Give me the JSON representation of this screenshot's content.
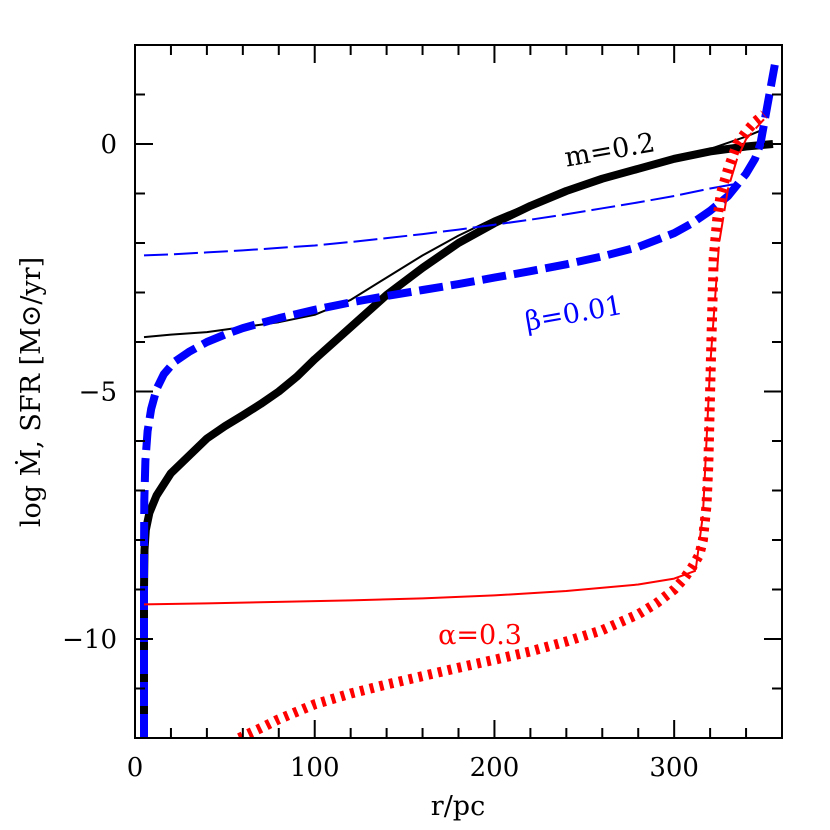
{
  "chart_data": {
    "type": "line",
    "xlabel": "r/pc",
    "ylabel": "log Ṁ, SFR [M⊙/yr]",
    "xlim": [
      0,
      360
    ],
    "ylim": [
      -12,
      2
    ],
    "xticks": [
      0,
      100,
      200,
      300
    ],
    "xtick_labels": [
      "0",
      "100",
      "200",
      "300"
    ],
    "yticks": [
      -10,
      -5,
      0
    ],
    "ytick_labels": [
      "−10",
      "−5",
      "0"
    ],
    "grid": false,
    "legend": "none",
    "colors": {
      "black": "#000000",
      "blue": "#0000ff",
      "red": "#ff0000"
    },
    "annotations": [
      {
        "text": "m=0.2",
        "x": 265,
        "y": -0.3,
        "color": "#000000",
        "rotate": -10
      },
      {
        "text": "β=0.01",
        "x": 245,
        "y": -3.6,
        "color": "#0000ff",
        "rotate": -10
      },
      {
        "text": "α=0.3",
        "x": 192,
        "y": -10.1,
        "color": "#ff0000",
        "rotate": 0
      }
    ],
    "series": [
      {
        "color": "#000000",
        "style": "solid",
        "weight": "thin",
        "x": [
          5,
          20,
          40,
          50,
          60,
          80,
          100,
          120,
          140,
          160,
          180,
          200,
          220,
          240,
          260,
          280,
          300,
          320,
          340,
          350
        ],
        "y": [
          -3.9,
          -3.85,
          -3.8,
          -3.75,
          -3.7,
          -3.6,
          -3.45,
          -3.15,
          -2.7,
          -2.25,
          -1.85,
          -1.5,
          -1.2,
          -0.95,
          -0.72,
          -0.5,
          -0.3,
          -0.1,
          0.15,
          0.3
        ]
      },
      {
        "color": "#000000",
        "style": "solid",
        "weight": "thick",
        "x": [
          5,
          5,
          5.3,
          6,
          8,
          12,
          20,
          30,
          40,
          50,
          60,
          70,
          80,
          90,
          100,
          120,
          140,
          160,
          180,
          200,
          220,
          240,
          260,
          280,
          300,
          320,
          340,
          355
        ],
        "y": [
          -12,
          -9,
          -8.2,
          -7.8,
          -7.45,
          -7.1,
          -6.65,
          -6.3,
          -5.95,
          -5.7,
          -5.48,
          -5.25,
          -5.0,
          -4.7,
          -4.35,
          -3.7,
          -3.05,
          -2.5,
          -2.0,
          -1.6,
          -1.25,
          -0.95,
          -0.7,
          -0.5,
          -0.3,
          -0.15,
          -0.05,
          0.0
        ]
      },
      {
        "color": "#0000ff",
        "style": "dashed",
        "weight": "thin",
        "x": [
          5,
          20,
          40,
          60,
          80,
          100,
          120,
          140,
          160,
          180,
          200,
          220,
          240,
          260,
          280,
          300,
          320,
          335
        ],
        "y": [
          -2.25,
          -2.23,
          -2.19,
          -2.15,
          -2.1,
          -2.05,
          -1.98,
          -1.9,
          -1.82,
          -1.73,
          -1.63,
          -1.53,
          -1.42,
          -1.3,
          -1.18,
          -1.05,
          -0.9,
          -0.8
        ]
      },
      {
        "color": "#0000ff",
        "style": "dashed",
        "weight": "thick",
        "x": [
          5,
          5,
          5.2,
          5.8,
          7,
          9,
          12,
          16,
          22,
          30,
          40,
          50,
          60,
          80,
          100,
          120,
          140,
          160,
          180,
          200,
          220,
          240,
          260,
          280,
          300,
          310,
          320,
          330,
          340,
          345,
          348,
          350,
          353,
          356
        ],
        "y": [
          -12,
          -8.5,
          -7.2,
          -6.4,
          -5.8,
          -5.35,
          -4.95,
          -4.65,
          -4.4,
          -4.2,
          -4.0,
          -3.85,
          -3.72,
          -3.52,
          -3.35,
          -3.2,
          -3.07,
          -2.95,
          -2.83,
          -2.7,
          -2.57,
          -2.43,
          -2.27,
          -2.08,
          -1.8,
          -1.6,
          -1.35,
          -1.05,
          -0.6,
          -0.3,
          0.0,
          0.4,
          1.0,
          1.6
        ]
      },
      {
        "color": "#ff0000",
        "style": "solid",
        "weight": "thin",
        "x": [
          5,
          40,
          80,
          120,
          160,
          200,
          240,
          280,
          300,
          312
        ],
        "y": [
          -9.3,
          -9.28,
          -9.25,
          -9.22,
          -9.18,
          -9.12,
          -9.03,
          -8.9,
          -8.78,
          -8.62
        ]
      },
      {
        "color": "#ff0000",
        "style": "dashed",
        "weight": "thin",
        "x": [
          312,
          316,
          320,
          325,
          330,
          335,
          340,
          345,
          350
        ],
        "y": [
          -8.6,
          -7.5,
          -4.5,
          -2.0,
          -0.9,
          -0.3,
          0.1,
          0.3,
          0.5
        ]
      },
      {
        "color": "#ff0000",
        "style": "dotted",
        "weight": "thick",
        "x": [
          58,
          70,
          80,
          100,
          120,
          140,
          160,
          180,
          200,
          220,
          240,
          260,
          280,
          290,
          300,
          305,
          310,
          314,
          316,
          318,
          319,
          320,
          321,
          322,
          324,
          326,
          330,
          335,
          340,
          345,
          350
        ],
        "y": [
          -12,
          -11.8,
          -11.62,
          -11.32,
          -11.1,
          -10.92,
          -10.75,
          -10.58,
          -10.42,
          -10.25,
          -10.05,
          -9.82,
          -9.5,
          -9.28,
          -9.0,
          -8.8,
          -8.55,
          -8.3,
          -8.0,
          -7.3,
          -6.5,
          -5.0,
          -3.6,
          -2.3,
          -1.5,
          -1.0,
          -0.5,
          0.0,
          0.25,
          0.45,
          0.6
        ]
      }
    ]
  }
}
